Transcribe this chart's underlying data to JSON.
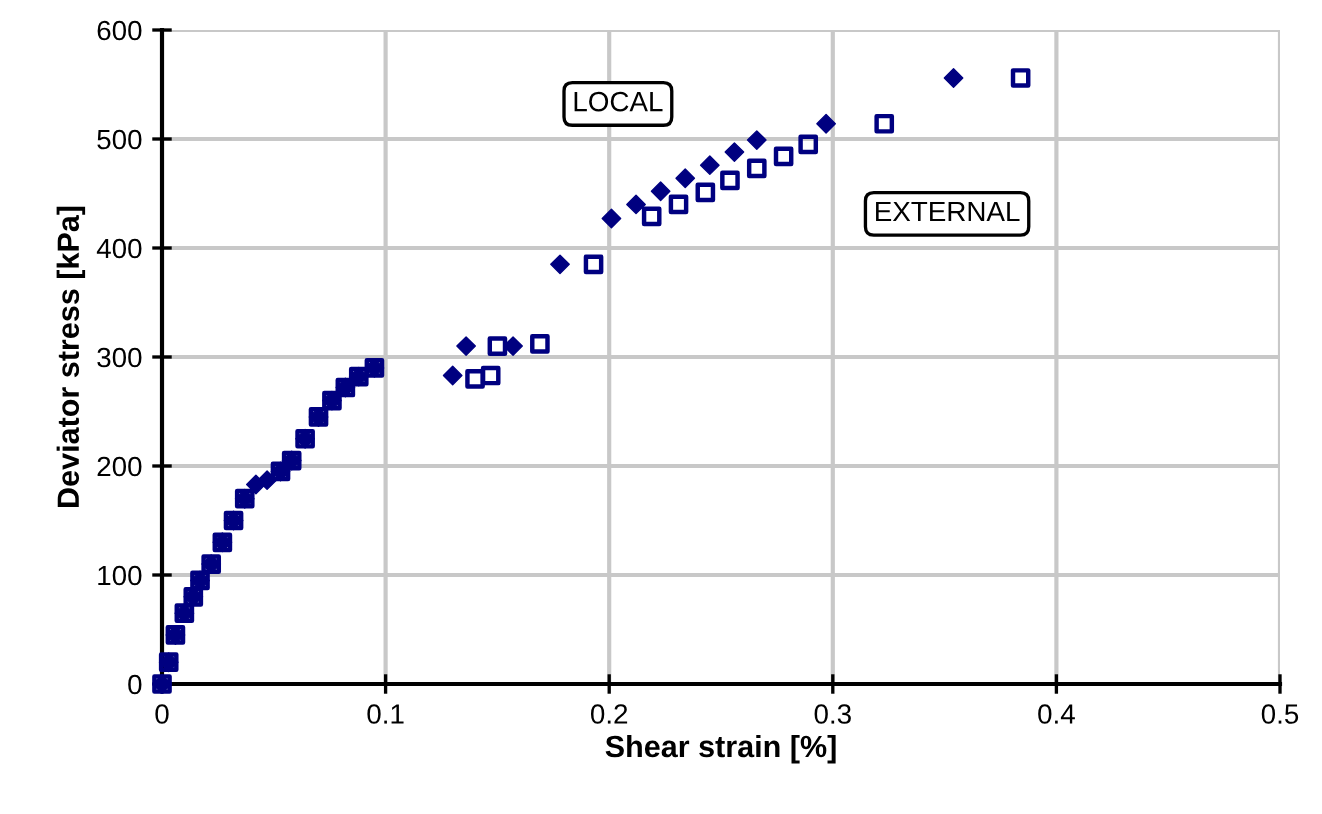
{
  "chart_data": {
    "type": "scatter",
    "xlabel": "Shear strain [%]",
    "ylabel": "Deviator stress [kPa]",
    "xlim": [
      0,
      0.5
    ],
    "xticks": [
      0,
      0.1,
      0.2,
      0.3,
      0.4,
      0.5
    ],
    "ylim": [
      0,
      600
    ],
    "yticks": [
      0,
      100,
      200,
      300,
      400,
      500,
      600
    ],
    "grid": true,
    "series": [
      {
        "name": "LOCAL",
        "color": "#000080",
        "marker": "diamond",
        "x": [
          0,
          0.003,
          0.006,
          0.01,
          0.014,
          0.017,
          0.022,
          0.027,
          0.032,
          0.037,
          0.042,
          0.047,
          0.053,
          0.058,
          0.064,
          0.07,
          0.076,
          0.082,
          0.088,
          0.095,
          0.13,
          0.136,
          0.157,
          0.178,
          0.201,
          0.212,
          0.223,
          0.234,
          0.245,
          0.256,
          0.266,
          0.297,
          0.354
        ],
        "values": [
          0,
          20,
          45,
          65,
          80,
          95,
          110,
          130,
          150,
          170,
          183,
          187,
          195,
          205,
          225,
          245,
          260,
          272,
          282,
          290,
          283,
          310,
          310,
          385,
          427,
          440,
          452,
          464,
          476,
          488,
          499,
          514,
          556
        ]
      },
      {
        "name": "EXTERNAL",
        "color": "#000080",
        "marker": "square",
        "x": [
          0,
          0.003,
          0.006,
          0.01,
          0.014,
          0.017,
          0.022,
          0.027,
          0.032,
          0.037,
          0.053,
          0.058,
          0.064,
          0.07,
          0.076,
          0.082,
          0.088,
          0.095,
          0.14,
          0.147,
          0.15,
          0.169,
          0.193,
          0.219,
          0.231,
          0.243,
          0.254,
          0.266,
          0.278,
          0.289,
          0.323,
          0.384
        ],
        "values": [
          0,
          20,
          45,
          65,
          80,
          95,
          110,
          130,
          150,
          170,
          195,
          205,
          225,
          245,
          260,
          272,
          282,
          290,
          280,
          283,
          310,
          312,
          385,
          429,
          440,
          451,
          462,
          473,
          484,
          495,
          514,
          556
        ]
      }
    ]
  }
}
